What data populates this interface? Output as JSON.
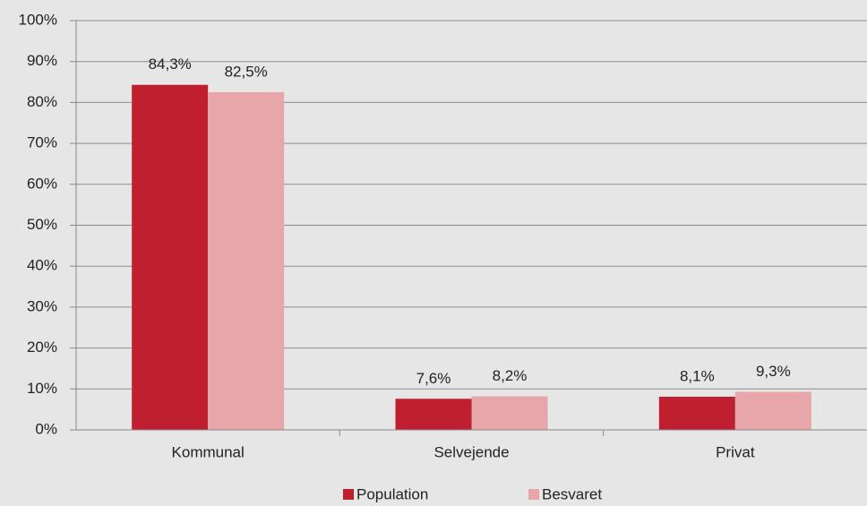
{
  "chart_data": {
    "type": "bar",
    "categories": [
      "Kommunal",
      "Selvejende",
      "Privat"
    ],
    "series": [
      {
        "name": "Population",
        "color": "#c01f30",
        "values": [
          84.3,
          7.6,
          8.1
        ],
        "value_labels": [
          "84,3%",
          "7,6%",
          "8,1%"
        ]
      },
      {
        "name": "Besvaret",
        "color": "#e8a6ab",
        "values": [
          82.5,
          8.2,
          9.3
        ],
        "value_labels": [
          "82,5%",
          "8,2%",
          "9,3%"
        ]
      }
    ],
    "ylim": [
      0,
      100
    ],
    "yticks": [
      {
        "value": 0,
        "label": "0%"
      },
      {
        "value": 10,
        "label": "10%"
      },
      {
        "value": 20,
        "label": "20%"
      },
      {
        "value": 30,
        "label": "30%"
      },
      {
        "value": 40,
        "label": "40%"
      },
      {
        "value": 50,
        "label": "50%"
      },
      {
        "value": 60,
        "label": "60%"
      },
      {
        "value": 70,
        "label": "70%"
      },
      {
        "value": 80,
        "label": "80%"
      },
      {
        "value": 90,
        "label": "90%"
      },
      {
        "value": 100,
        "label": "100%"
      }
    ],
    "grid": true,
    "legend": "bottom"
  }
}
